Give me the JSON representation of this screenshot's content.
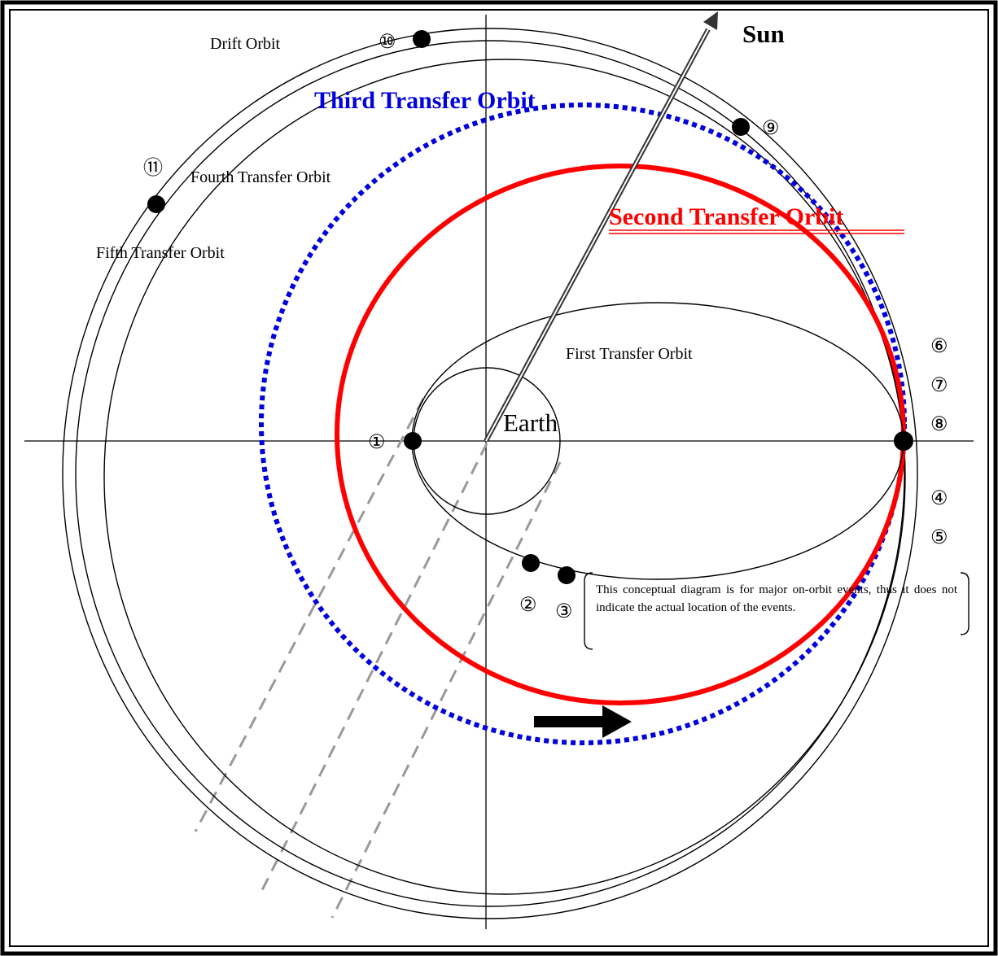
{
  "labels": {
    "sun": "Sun",
    "earth": "Earth",
    "drift_orbit": "Drift Orbit",
    "first_transfer_orbit": "First Transfer Orbit",
    "second_transfer_orbit": "Second Transfer Orbit",
    "third_transfer_orbit": "Third Transfer Orbit",
    "fourth_transfer_orbit": "Fourth Transfer Orbit",
    "fifth_transfer_orbit": "Fifth Transfer Orbit"
  },
  "events": {
    "e1": "①",
    "e2": "②",
    "e3": "③",
    "e4": "④",
    "e5": "⑤",
    "e6": "⑥",
    "e7": "⑦",
    "e8": "⑧",
    "e9": "⑨",
    "e10": "⑩",
    "e11": "⑪"
  },
  "note": "This conceptual diagram is for major on-orbit events, thus it does not indicate the actual location of the events.",
  "colors": {
    "second_orbit": "#ff0000",
    "third_orbit": "#0000dd",
    "shadow_lines": "#999999",
    "ink": "#000000"
  }
}
